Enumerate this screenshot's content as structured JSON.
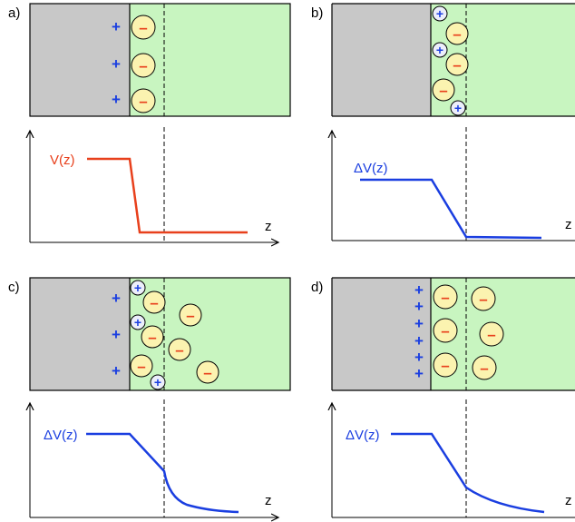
{
  "panels": [
    {
      "label": "a)",
      "curve_label": "V(z)",
      "axis_label": "z",
      "curve_color": "#e8401c",
      "surface_charge_glyph": "+",
      "ion_glyph_negative": "–",
      "ion_glyph_positive": "+"
    },
    {
      "label": "b)",
      "curve_label": "ΔV(z)",
      "axis_label": "z",
      "curve_color": "#1a3ee0",
      "surface_charge_glyph": "+",
      "ion_glyph_negative": "–",
      "ion_glyph_positive": "+"
    },
    {
      "label": "c)",
      "curve_label": "ΔV(z)",
      "axis_label": "z",
      "curve_color": "#1a3ee0",
      "surface_charge_glyph": "+",
      "ion_glyph_negative": "–",
      "ion_glyph_positive": "+"
    },
    {
      "label": "d)",
      "curve_label": "ΔV(z)",
      "axis_label": "z",
      "curve_color": "#1a3ee0",
      "surface_charge_glyph": "+",
      "ion_glyph_negative": "–",
      "ion_glyph_positive": "+"
    }
  ],
  "colors": {
    "electrode": "#c8c8c8",
    "electrolyte": "#c8f5c0",
    "anion_fill": "#fbf3b0",
    "cation_fill": "#eceefa",
    "plus_color": "#1a3ee0",
    "minus_color": "#e8401c",
    "potential_red": "#e8401c",
    "potential_blue": "#1a3ee0"
  }
}
